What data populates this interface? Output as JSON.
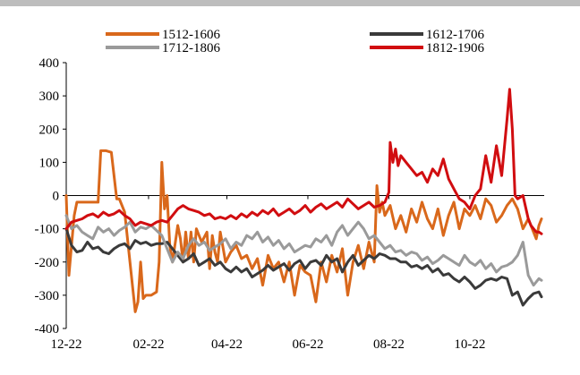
{
  "chart_data": {
    "type": "line",
    "title": "",
    "xlabel": "",
    "ylabel": "",
    "ylim": [
      -400,
      400
    ],
    "yticks": [
      400,
      300,
      200,
      100,
      0,
      -100,
      -200,
      -300,
      -400
    ],
    "xlim": [
      0,
      360
    ],
    "xtick_labels": [
      "12-22",
      "02-22",
      "04-22",
      "06-22",
      "08-22",
      "10-22"
    ],
    "xtick_values": [
      0,
      62,
      121,
      182,
      243,
      304
    ],
    "legend_placement": "top",
    "grid": false,
    "series": [
      {
        "name": "1512-1606",
        "color": "#d9681b",
        "x": [
          0,
          2,
          4,
          6,
          8,
          10,
          12,
          16,
          20,
          24,
          26,
          30,
          34,
          38,
          40,
          44,
          48,
          52,
          54,
          56,
          58,
          60,
          64,
          68,
          70,
          72,
          74,
          76,
          78,
          80,
          84,
          86,
          88,
          90,
          92,
          94,
          96,
          98,
          102,
          106,
          108,
          110,
          112,
          114,
          116,
          120,
          124,
          128,
          132,
          136,
          140,
          144,
          148,
          152,
          156,
          160,
          164,
          168,
          172,
          176,
          180,
          184,
          188,
          192,
          196,
          200,
          204,
          208,
          212,
          216,
          220,
          224,
          228,
          232,
          234,
          236,
          238,
          240,
          244,
          248,
          252,
          256,
          260,
          264,
          268,
          272,
          276,
          280,
          284,
          288,
          292,
          296,
          300,
          304,
          308,
          312,
          316,
          320,
          324,
          328,
          332,
          336,
          340,
          344,
          348,
          352,
          354,
          356,
          358
        ],
        "y": [
          0,
          -240,
          -150,
          -60,
          -20,
          -20,
          -20,
          -20,
          -20,
          -20,
          135,
          135,
          130,
          -10,
          -10,
          -50,
          -200,
          -350,
          -320,
          -200,
          -310,
          -300,
          -300,
          -290,
          -200,
          100,
          -40,
          0,
          -150,
          -200,
          -90,
          -130,
          -200,
          -110,
          -190,
          -110,
          -200,
          -100,
          -140,
          -110,
          -220,
          -120,
          -170,
          -200,
          -110,
          -200,
          -170,
          -150,
          -190,
          -180,
          -220,
          -190,
          -270,
          -180,
          -220,
          -200,
          -260,
          -200,
          -300,
          -210,
          -230,
          -240,
          -320,
          -200,
          -260,
          -180,
          -230,
          -160,
          -300,
          -200,
          -150,
          -220,
          -140,
          -200,
          30,
          -50,
          -20,
          -60,
          -30,
          -100,
          -60,
          -110,
          -40,
          -80,
          -20,
          -70,
          -100,
          -40,
          -120,
          -60,
          -20,
          -100,
          -40,
          -60,
          -30,
          -70,
          -10,
          -30,
          -80,
          -60,
          -30,
          -10,
          -40,
          -100,
          -70,
          -110,
          -130,
          -90,
          -70
        ]
      },
      {
        "name": "1612-1706",
        "color": "#3a3a3a",
        "x": [
          0,
          4,
          8,
          12,
          16,
          20,
          24,
          28,
          32,
          36,
          40,
          44,
          48,
          52,
          56,
          60,
          64,
          68,
          72,
          76,
          80,
          84,
          88,
          92,
          96,
          100,
          104,
          108,
          112,
          116,
          120,
          124,
          128,
          132,
          136,
          140,
          144,
          148,
          152,
          156,
          160,
          164,
          168,
          172,
          176,
          180,
          184,
          188,
          192,
          196,
          200,
          204,
          208,
          212,
          216,
          220,
          224,
          228,
          232,
          236,
          240,
          244,
          248,
          252,
          256,
          260,
          264,
          268,
          272,
          276,
          280,
          284,
          288,
          292,
          296,
          300,
          304,
          308,
          312,
          316,
          320,
          324,
          328,
          332,
          336,
          340,
          344,
          348,
          352,
          356,
          358
        ],
        "y": [
          -100,
          -150,
          -170,
          -165,
          -140,
          -160,
          -155,
          -170,
          -175,
          -160,
          -150,
          -145,
          -160,
          -135,
          -145,
          -140,
          -150,
          -145,
          -145,
          -140,
          -160,
          -180,
          -200,
          -190,
          -175,
          -210,
          -200,
          -190,
          -210,
          -200,
          -220,
          -230,
          -215,
          -230,
          -220,
          -245,
          -235,
          -225,
          -210,
          -225,
          -215,
          -205,
          -225,
          -205,
          -195,
          -220,
          -200,
          -195,
          -210,
          -180,
          -200,
          -190,
          -230,
          -200,
          -180,
          -210,
          -195,
          -180,
          -190,
          -175,
          -180,
          -190,
          -190,
          -200,
          -200,
          -215,
          -210,
          -220,
          -210,
          -230,
          -220,
          -240,
          -235,
          -250,
          -260,
          -245,
          -260,
          -280,
          -270,
          -255,
          -250,
          -255,
          -245,
          -250,
          -300,
          -290,
          -330,
          -310,
          -295,
          -290,
          -305
        ]
      },
      {
        "name": "1712-1806",
        "color": "#9a9a9a",
        "x": [
          0,
          4,
          8,
          12,
          16,
          20,
          24,
          28,
          32,
          36,
          40,
          44,
          48,
          52,
          56,
          60,
          64,
          68,
          72,
          76,
          80,
          84,
          88,
          92,
          96,
          100,
          104,
          108,
          112,
          116,
          120,
          124,
          128,
          132,
          136,
          140,
          144,
          148,
          152,
          156,
          160,
          164,
          168,
          172,
          176,
          180,
          184,
          188,
          192,
          196,
          200,
          204,
          208,
          212,
          216,
          220,
          224,
          228,
          232,
          236,
          240,
          244,
          248,
          252,
          256,
          260,
          264,
          268,
          272,
          276,
          280,
          284,
          288,
          292,
          296,
          300,
          304,
          308,
          312,
          316,
          320,
          324,
          328,
          332,
          336,
          340,
          344,
          348,
          352,
          356,
          358
        ],
        "y": [
          -60,
          -100,
          -90,
          -110,
          -120,
          -130,
          -95,
          -110,
          -100,
          -120,
          -105,
          -95,
          -80,
          -110,
          -95,
          -100,
          -90,
          -105,
          -120,
          -160,
          -200,
          -170,
          -190,
          -150,
          -130,
          -150,
          -140,
          -165,
          -155,
          -145,
          -130,
          -160,
          -140,
          -150,
          -120,
          -130,
          -110,
          -140,
          -125,
          -150,
          -135,
          -160,
          -145,
          -170,
          -160,
          -150,
          -155,
          -130,
          -140,
          -120,
          -150,
          -110,
          -90,
          -120,
          -100,
          -80,
          -100,
          -130,
          -120,
          -140,
          -160,
          -150,
          -170,
          -165,
          -180,
          -170,
          -175,
          -195,
          -185,
          -205,
          -195,
          -180,
          -190,
          -200,
          -210,
          -180,
          -200,
          -210,
          -195,
          -220,
          -205,
          -230,
          -215,
          -210,
          -200,
          -180,
          -140,
          -240,
          -270,
          -250,
          -255
        ]
      },
      {
        "name": "1812-1906",
        "color": "#d10d10",
        "x": [
          0,
          4,
          8,
          12,
          16,
          20,
          24,
          28,
          32,
          36,
          40,
          44,
          48,
          52,
          56,
          60,
          64,
          68,
          72,
          76,
          80,
          84,
          88,
          92,
          96,
          100,
          104,
          108,
          112,
          116,
          120,
          124,
          128,
          132,
          136,
          140,
          144,
          148,
          152,
          156,
          160,
          164,
          168,
          172,
          176,
          180,
          184,
          188,
          192,
          196,
          200,
          204,
          208,
          212,
          216,
          220,
          224,
          228,
          232,
          236,
          240,
          243,
          244,
          246,
          248,
          250,
          252,
          256,
          260,
          264,
          268,
          272,
          276,
          280,
          284,
          288,
          292,
          296,
          300,
          304,
          308,
          312,
          316,
          320,
          324,
          328,
          332,
          334,
          336,
          338,
          340,
          344,
          348,
          350,
          352,
          354,
          356,
          358
        ],
        "y": [
          -100,
          -80,
          -75,
          -70,
          -60,
          -55,
          -65,
          -50,
          -60,
          -55,
          -45,
          -60,
          -70,
          -90,
          -80,
          -85,
          -90,
          -80,
          -75,
          -80,
          -60,
          -40,
          -30,
          -40,
          -45,
          -50,
          -60,
          -55,
          -70,
          -65,
          -70,
          -60,
          -70,
          -55,
          -65,
          -50,
          -60,
          -45,
          -55,
          -40,
          -60,
          -50,
          -40,
          -55,
          -45,
          -30,
          -50,
          -35,
          -25,
          -40,
          -30,
          -20,
          -35,
          -10,
          -25,
          -40,
          -30,
          -20,
          -35,
          -30,
          -20,
          10,
          160,
          100,
          140,
          90,
          120,
          100,
          80,
          60,
          70,
          40,
          80,
          60,
          110,
          50,
          20,
          -10,
          -20,
          -40,
          0,
          20,
          120,
          40,
          150,
          60,
          230,
          320,
          200,
          0,
          -10,
          0,
          -70,
          -90,
          -100,
          -110,
          -110,
          -115
        ]
      }
    ]
  }
}
